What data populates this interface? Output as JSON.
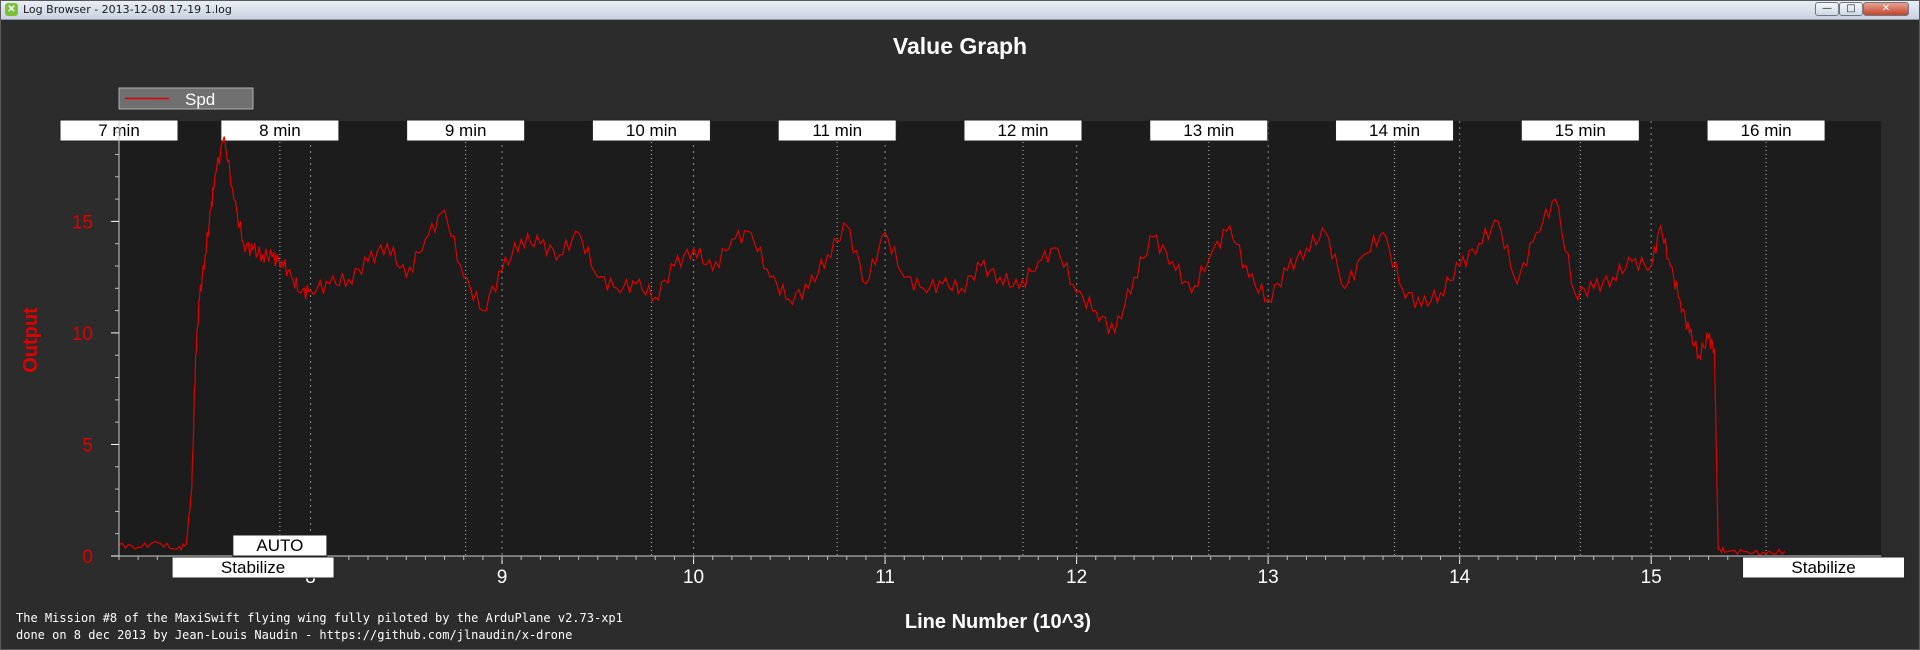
{
  "window": {
    "title": "Log Browser - 2013-12-08 17-19 1.log",
    "app_icon_glyph": "✕",
    "controls": {
      "minimize": "—",
      "maximize": "□",
      "close": "✕"
    }
  },
  "colors": {
    "plot_background": "#1c1c1c",
    "outer_background": "#2c2c2c",
    "series": "#e00000",
    "axis_text": "#ffffff",
    "ylabel": "#e00000"
  },
  "chart_data": {
    "type": "line",
    "title": "Value Graph",
    "xlabel": "Line Number (10^3)",
    "ylabel": "Output",
    "xlim": [
      7.0,
      16.2
    ],
    "ylim": [
      0,
      19.5
    ],
    "x_ticks": [
      "8",
      "9",
      "10",
      "11",
      "12",
      "13",
      "14",
      "15"
    ],
    "y_ticks": [
      "0",
      "5",
      "10",
      "15"
    ],
    "legend": {
      "position": "top-left",
      "entries": [
        "Spd"
      ]
    },
    "time_markers": [
      {
        "label": "7 min",
        "x": 7.0
      },
      {
        "label": "8 min",
        "x": 7.84
      },
      {
        "label": "9 min",
        "x": 8.81
      },
      {
        "label": "10 min",
        "x": 9.78
      },
      {
        "label": "11 min",
        "x": 10.75
      },
      {
        "label": "12 min",
        "x": 11.72
      },
      {
        "label": "13 min",
        "x": 12.69
      },
      {
        "label": "14 min",
        "x": 13.66
      },
      {
        "label": "15 min",
        "x": 14.63
      },
      {
        "label": "16 min",
        "x": 15.6
      }
    ],
    "mode_markers": [
      {
        "label": "AUTO",
        "x": 7.84,
        "row": "upper"
      },
      {
        "label": "Stabilize",
        "x": 7.7,
        "row": "lower"
      },
      {
        "label": "Stabilize",
        "x": 15.9,
        "row": "lower"
      }
    ],
    "series": [
      {
        "name": "Spd",
        "x": [
          7.0,
          7.1,
          7.2,
          7.3,
          7.35,
          7.38,
          7.4,
          7.42,
          7.45,
          7.48,
          7.5,
          7.55,
          7.6,
          7.65,
          7.7,
          7.75,
          7.8,
          7.85,
          7.9,
          7.95,
          8.0,
          8.1,
          8.2,
          8.3,
          8.4,
          8.5,
          8.6,
          8.7,
          8.8,
          8.9,
          9.0,
          9.1,
          9.2,
          9.3,
          9.4,
          9.5,
          9.6,
          9.7,
          9.8,
          9.9,
          10.0,
          10.1,
          10.2,
          10.3,
          10.4,
          10.5,
          10.6,
          10.7,
          10.8,
          10.9,
          11.0,
          11.1,
          11.2,
          11.3,
          11.4,
          11.5,
          11.6,
          11.7,
          11.8,
          11.9,
          12.0,
          12.1,
          12.2,
          12.3,
          12.4,
          12.5,
          12.6,
          12.7,
          12.8,
          12.9,
          13.0,
          13.1,
          13.2,
          13.3,
          13.4,
          13.5,
          13.6,
          13.7,
          13.8,
          13.9,
          14.0,
          14.1,
          14.2,
          14.3,
          14.4,
          14.5,
          14.6,
          14.7,
          14.8,
          14.9,
          15.0,
          15.05,
          15.1,
          15.15,
          15.2,
          15.25,
          15.3,
          15.33,
          15.35,
          15.4,
          15.5,
          15.6,
          15.7
        ],
        "values": [
          0.5,
          0.4,
          0.6,
          0.3,
          0.5,
          3.0,
          9.0,
          11.5,
          13.5,
          15.5,
          17.0,
          18.8,
          16.0,
          14.0,
          13.7,
          13.5,
          13.4,
          13.2,
          12.5,
          11.8,
          11.9,
          12.2,
          12.4,
          13.2,
          14.0,
          12.5,
          14.2,
          15.5,
          12.5,
          11.0,
          12.8,
          14.2,
          14.0,
          13.5,
          14.5,
          12.5,
          12.0,
          12.2,
          11.6,
          13.0,
          13.8,
          12.8,
          14.2,
          14.5,
          12.5,
          11.5,
          12.0,
          13.5,
          14.8,
          12.2,
          14.5,
          12.5,
          12.0,
          12.2,
          12.0,
          13.0,
          12.5,
          12.0,
          13.2,
          13.8,
          11.8,
          11.0,
          10.0,
          12.5,
          14.3,
          13.2,
          11.8,
          13.5,
          14.8,
          12.5,
          11.5,
          12.8,
          13.8,
          14.5,
          12.0,
          13.5,
          14.5,
          12.0,
          11.2,
          11.8,
          13.0,
          14.0,
          15.0,
          12.2,
          14.5,
          16.0,
          11.8,
          12.0,
          12.5,
          13.2,
          13.0,
          14.8,
          13.0,
          11.5,
          10.0,
          9.0,
          9.8,
          9.3,
          0.3,
          0.2,
          0.2,
          0.1,
          0.2
        ]
      }
    ]
  },
  "footer": {
    "line1": "The Mission #8 of the MaxiSwift flying wing fully piloted by the ArduPlane v2.73-xp1",
    "line2": "done on 8 dec 2013 by Jean-Louis Naudin - https://github.com/jlnaudin/x-drone"
  }
}
